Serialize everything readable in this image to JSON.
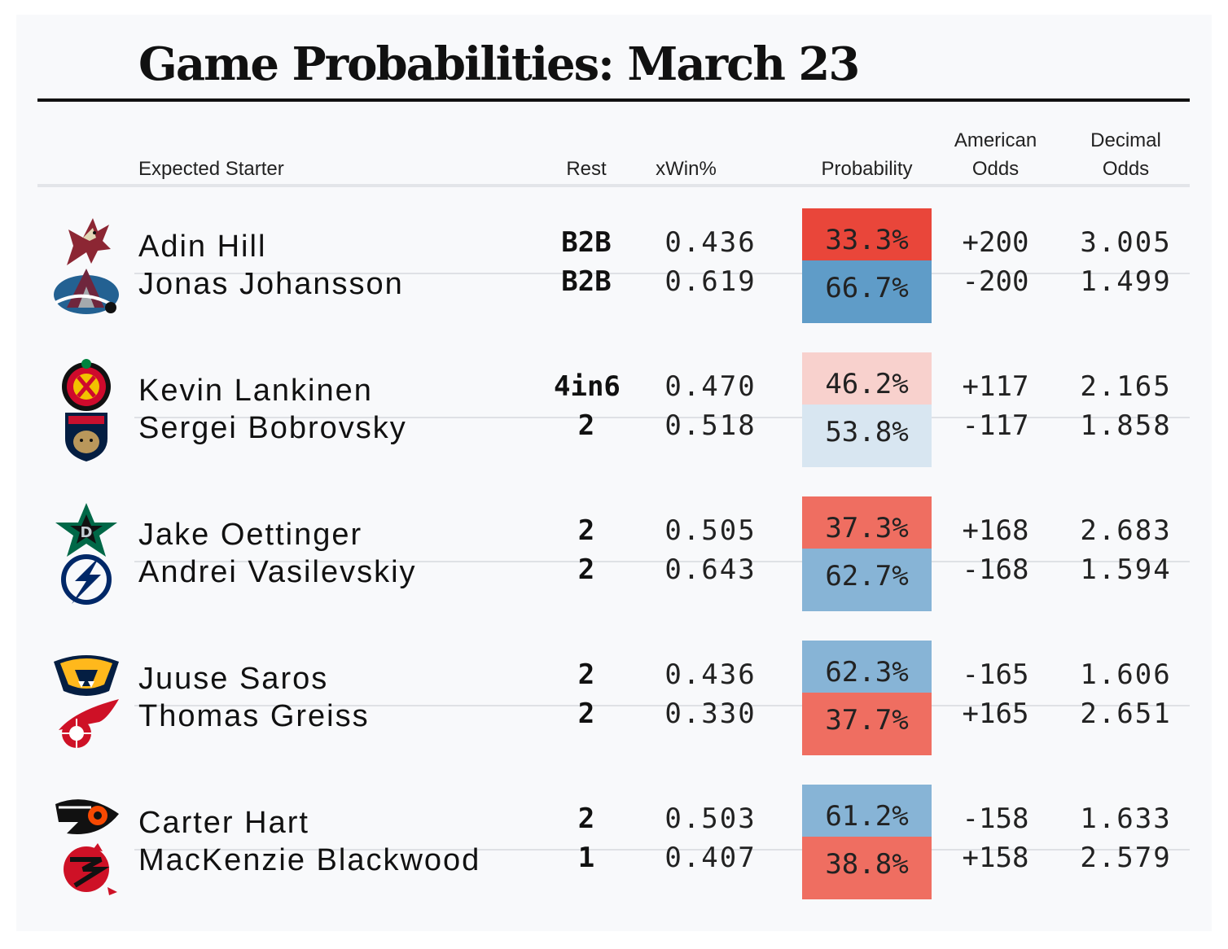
{
  "title": "Game Probabilities: March 23",
  "headers": {
    "starter": "Expected Starter",
    "rest": "Rest",
    "xwin": "xWin%",
    "probability": "Probability",
    "american_line1": "American",
    "american_line2": "Odds",
    "decimal_line1": "Decimal",
    "decimal_line2": "Odds"
  },
  "games": [
    {
      "teams": [
        {
          "logo": "coyotes-logo-icon",
          "starter": "Adin Hill",
          "rest": "B2B",
          "xwin": "0.436",
          "probability": "33.3%",
          "prob_color": "#e9463a",
          "american": "+200",
          "decimal": "3.005"
        },
        {
          "logo": "avalanche-logo-icon",
          "starter": "Jonas Johansson",
          "rest": "B2B",
          "xwin": "0.619",
          "probability": "66.7%",
          "prob_color": "#5f9cc8",
          "american": "-200",
          "decimal": "1.499"
        }
      ]
    },
    {
      "teams": [
        {
          "logo": "blackhawks-logo-icon",
          "starter": "Kevin Lankinen",
          "rest": "4in6",
          "xwin": "0.470",
          "probability": "46.2%",
          "prob_color": "#f8d1cd",
          "american": "+117",
          "decimal": "2.165"
        },
        {
          "logo": "panthers-logo-icon",
          "starter": "Sergei Bobrovsky",
          "rest": "2",
          "xwin": "0.518",
          "probability": "53.8%",
          "prob_color": "#d8e6f1",
          "american": "-117",
          "decimal": "1.858"
        }
      ]
    },
    {
      "teams": [
        {
          "logo": "stars-logo-icon",
          "starter": "Jake Oettinger",
          "rest": "2",
          "xwin": "0.505",
          "probability": "37.3%",
          "prob_color": "#ef6e61",
          "american": "+168",
          "decimal": "2.683"
        },
        {
          "logo": "lightning-logo-icon",
          "starter": "Andrei Vasilevskiy",
          "rest": "2",
          "xwin": "0.643",
          "probability": "62.7%",
          "prob_color": "#87b4d6",
          "american": "-168",
          "decimal": "1.594"
        }
      ]
    },
    {
      "teams": [
        {
          "logo": "predators-logo-icon",
          "starter": "Juuse Saros",
          "rest": "2",
          "xwin": "0.436",
          "probability": "62.3%",
          "prob_color": "#87b4d6",
          "american": "-165",
          "decimal": "1.606"
        },
        {
          "logo": "red-wings-logo-icon",
          "starter": "Thomas Greiss",
          "rest": "2",
          "xwin": "0.330",
          "probability": "37.7%",
          "prob_color": "#ef6e61",
          "american": "+165",
          "decimal": "2.651"
        }
      ]
    },
    {
      "teams": [
        {
          "logo": "flyers-logo-icon",
          "starter": "Carter Hart",
          "rest": "2",
          "xwin": "0.503",
          "probability": "61.2%",
          "prob_color": "#87b4d6",
          "american": "-158",
          "decimal": "1.633"
        },
        {
          "logo": "devils-logo-icon",
          "starter": "MacKenzie Blackwood",
          "rest": "1",
          "xwin": "0.407",
          "probability": "38.8%",
          "prob_color": "#ef6e61",
          "american": "+158",
          "decimal": "2.579"
        }
      ]
    }
  ]
}
